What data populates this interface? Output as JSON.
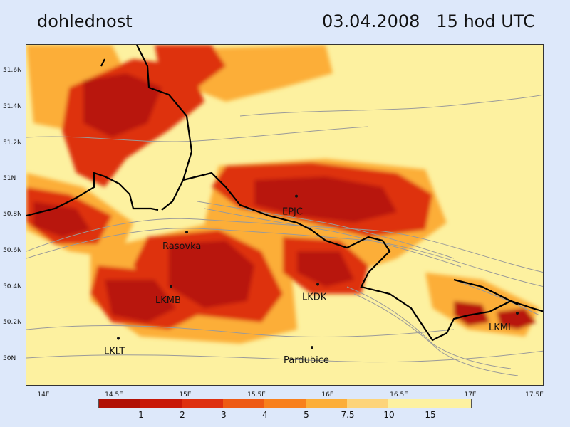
{
  "header": {
    "variable": "dohlednost",
    "datetime": "03.04.2008   15 hod UTC"
  },
  "axes": {
    "lat_labels": [
      "51.6N",
      "51.4N",
      "51.2N",
      "51N",
      "50.8N",
      "50.6N",
      "50.4N",
      "50.2N",
      "50N"
    ],
    "lon_labels": [
      "14E",
      "14.5E",
      "15E",
      "15.5E",
      "16E",
      "16.5E",
      "17E",
      "17.5E"
    ]
  },
  "stations": [
    {
      "name": "EPJC",
      "lon": 15.77,
      "lat": 50.91
    },
    {
      "name": "Rasovka",
      "lon": 15.0,
      "lat": 50.71
    },
    {
      "name": "LKMB",
      "lon": 14.89,
      "lat": 50.41
    },
    {
      "name": "LKDK",
      "lon": 15.92,
      "lat": 50.42
    },
    {
      "name": "LKMI",
      "lon": 17.32,
      "lat": 50.26
    },
    {
      "name": "LKLT",
      "lon": 14.52,
      "lat": 50.12
    },
    {
      "name": "Pardubice",
      "lon": 15.88,
      "lat": 50.07
    }
  ],
  "legend": {
    "labels": [
      "1",
      "2",
      "3",
      "4",
      "5",
      "7.5",
      "10",
      "15"
    ],
    "colors": [
      "#b11005",
      "#c81808",
      "#de3010",
      "#ee5a14",
      "#f8801c",
      "#fcae38",
      "#fdd47a",
      "#fdf1a0"
    ]
  },
  "colors": {
    "background": "#fdf1a0",
    "low_visibility": "#b81408",
    "border": "#000000",
    "contour": "#9a9a9a"
  }
}
